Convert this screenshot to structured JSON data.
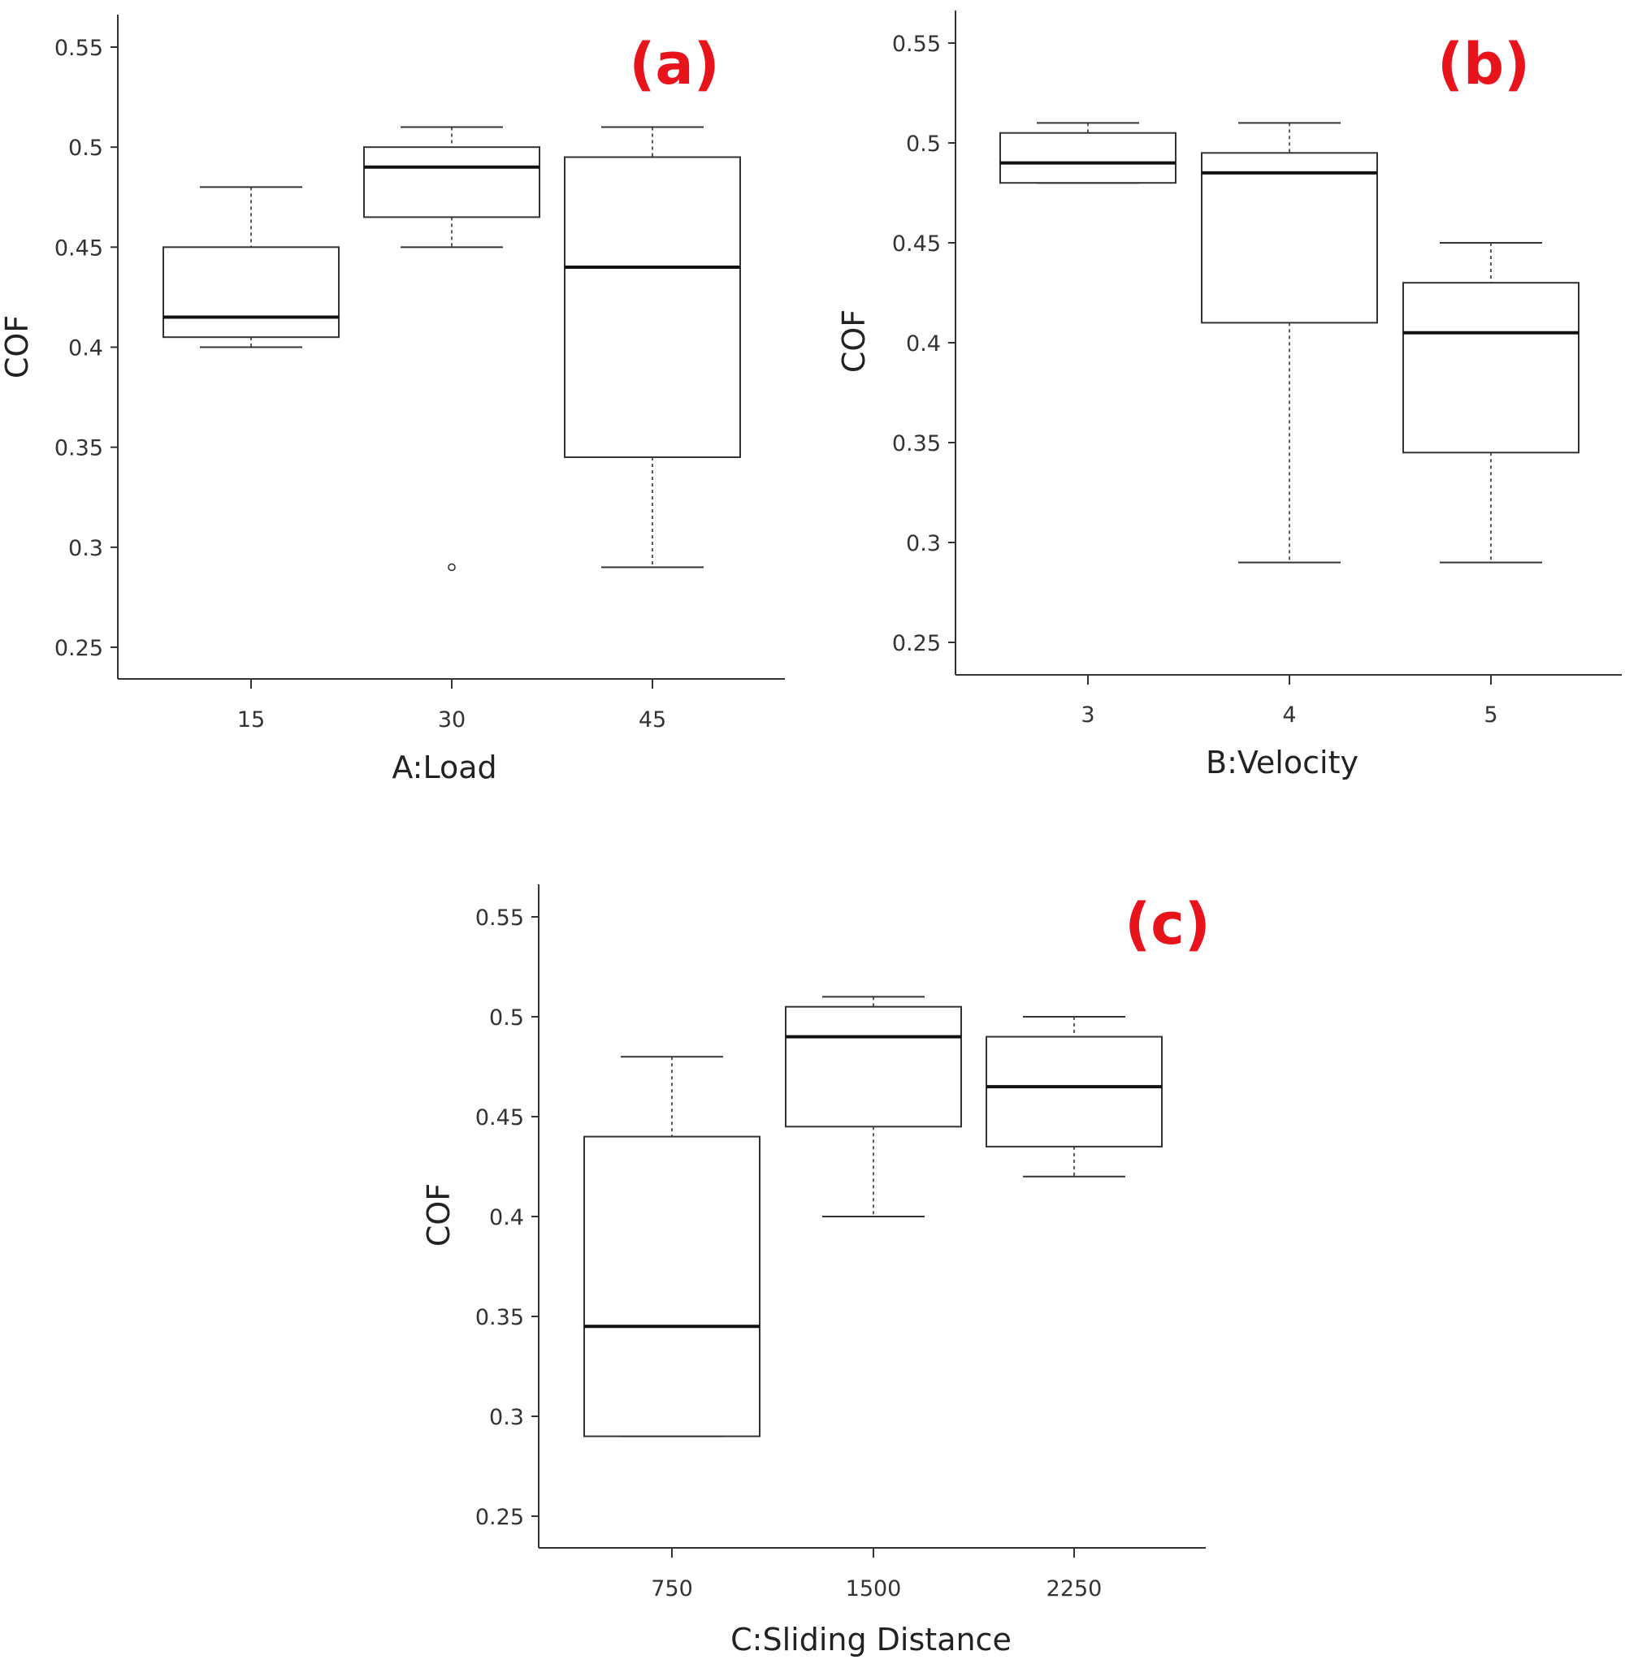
{
  "chart_data": [
    {
      "type": "box",
      "panel_label": "(a)",
      "xlabel": "A:Load",
      "ylabel": "COF",
      "ylim": [
        0.25,
        0.55
      ],
      "yticks": [
        "0.25",
        "0.3",
        "0.35",
        "0.4",
        "0.45",
        "0.5",
        "0.55"
      ],
      "categories": [
        "15",
        "30",
        "45"
      ],
      "boxes": [
        {
          "category": "15",
          "whisker_low": 0.4,
          "q1": 0.405,
          "median": 0.415,
          "q3": 0.45,
          "whisker_high": 0.48,
          "outliers": []
        },
        {
          "category": "30",
          "whisker_low": 0.45,
          "q1": 0.465,
          "median": 0.49,
          "q3": 0.5,
          "whisker_high": 0.51,
          "outliers": [
            0.29
          ]
        },
        {
          "category": "45",
          "whisker_low": 0.29,
          "q1": 0.345,
          "median": 0.44,
          "q3": 0.495,
          "whisker_high": 0.51,
          "outliers": []
        }
      ]
    },
    {
      "type": "box",
      "panel_label": "(b)",
      "xlabel": "B:Velocity",
      "ylabel": "COF",
      "ylim": [
        0.25,
        0.55
      ],
      "yticks": [
        "0.25",
        "0.3",
        "0.35",
        "0.4",
        "0.45",
        "0.5",
        "0.55"
      ],
      "categories": [
        "3",
        "4",
        "5"
      ],
      "boxes": [
        {
          "category": "3",
          "whisker_low": 0.48,
          "q1": 0.48,
          "median": 0.49,
          "q3": 0.505,
          "whisker_high": 0.51,
          "outliers": []
        },
        {
          "category": "4",
          "whisker_low": 0.29,
          "q1": 0.41,
          "median": 0.485,
          "q3": 0.495,
          "whisker_high": 0.51,
          "outliers": []
        },
        {
          "category": "5",
          "whisker_low": 0.29,
          "q1": 0.345,
          "median": 0.405,
          "q3": 0.43,
          "whisker_high": 0.45,
          "outliers": []
        }
      ]
    },
    {
      "type": "box",
      "panel_label": "(c)",
      "xlabel": "C:Sliding Distance",
      "ylabel": "COF",
      "ylim": [
        0.25,
        0.55
      ],
      "yticks": [
        "0.25",
        "0.3",
        "0.35",
        "0.4",
        "0.45",
        "0.5",
        "0.55"
      ],
      "categories": [
        "750",
        "1500",
        "2250"
      ],
      "boxes": [
        {
          "category": "750",
          "whisker_low": 0.29,
          "q1": 0.29,
          "median": 0.345,
          "q3": 0.44,
          "whisker_high": 0.48,
          "outliers": []
        },
        {
          "category": "1500",
          "whisker_low": 0.4,
          "q1": 0.445,
          "median": 0.49,
          "q3": 0.505,
          "whisker_high": 0.51,
          "outliers": []
        },
        {
          "category": "2250",
          "whisker_low": 0.42,
          "q1": 0.435,
          "median": 0.465,
          "q3": 0.49,
          "whisker_high": 0.5,
          "outliers": []
        }
      ]
    }
  ],
  "colors": {
    "panel_label": "#e8141b",
    "axis": "#333333",
    "box_stroke": "#333333"
  }
}
